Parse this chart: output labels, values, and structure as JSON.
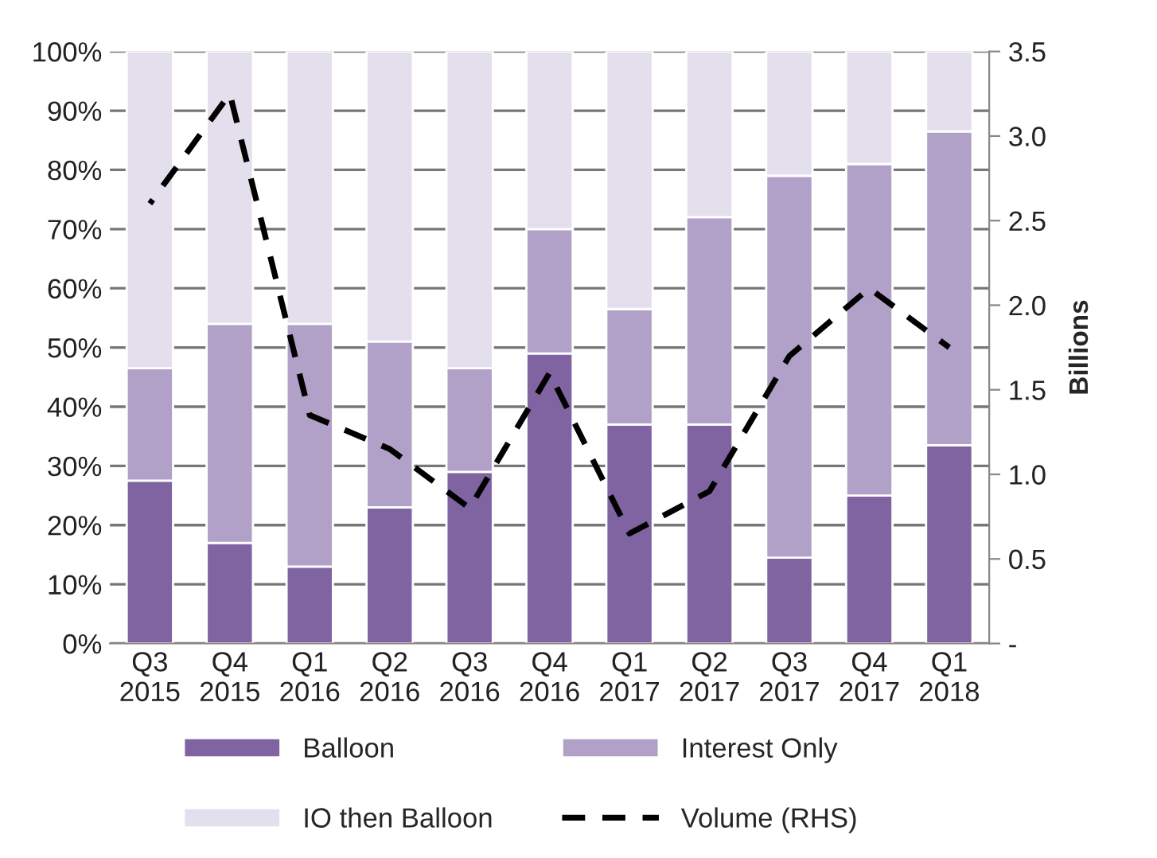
{
  "chart_data": {
    "type": "bar",
    "stacked": true,
    "y2label": "Billions",
    "categories": [
      "Q3\n2015",
      "Q4\n2015",
      "Q1\n2016",
      "Q2\n2016",
      "Q3\n2016",
      "Q4\n2016",
      "Q1\n2017",
      "Q2\n2017",
      "Q3\n2017",
      "Q4\n2017",
      "Q1\n2018"
    ],
    "series": [
      {
        "name": "Balloon",
        "color": "#8064a2",
        "values": [
          27.5,
          17,
          13,
          23,
          29,
          49,
          37,
          37,
          14.5,
          25,
          33.5
        ]
      },
      {
        "name": "Interest Only",
        "color": "#b1a0c7",
        "values": [
          19,
          37,
          41,
          28,
          17.5,
          21,
          19.5,
          35,
          64.5,
          56,
          53
        ]
      },
      {
        "name": "IO then Balloon",
        "color": "#e4dfec",
        "values": [
          53.5,
          46,
          46,
          49,
          53.5,
          30,
          43.5,
          28,
          21,
          19,
          13.5
        ]
      },
      {
        "name": "Volume (RHS)",
        "type": "line",
        "axis": "y2",
        "color": "#000000",
        "line_style": "dashed",
        "values": [
          2.6,
          3.25,
          1.35,
          1.15,
          0.8,
          1.6,
          0.65,
          0.9,
          1.7,
          2.1,
          1.75
        ]
      }
    ],
    "ylim": [
      0,
      100
    ],
    "yticks": [
      {
        "value": 0,
        "label": "0%"
      },
      {
        "value": 10,
        "label": "10%"
      },
      {
        "value": 20,
        "label": "20%"
      },
      {
        "value": 30,
        "label": "30%"
      },
      {
        "value": 40,
        "label": "40%"
      },
      {
        "value": 50,
        "label": "50%"
      },
      {
        "value": 60,
        "label": "60%"
      },
      {
        "value": 70,
        "label": "70%"
      },
      {
        "value": 80,
        "label": "80%"
      },
      {
        "value": 90,
        "label": "90%"
      },
      {
        "value": 100,
        "label": "100%"
      }
    ],
    "y2lim": [
      0,
      3.5
    ],
    "y2ticks": [
      {
        "value": 0,
        "label": "-"
      },
      {
        "value": 0.5,
        "label": "0.5"
      },
      {
        "value": 1,
        "label": "1.0"
      },
      {
        "value": 1.5,
        "label": "1.5"
      },
      {
        "value": 2,
        "label": "2.0"
      },
      {
        "value": 2.5,
        "label": "2.5"
      },
      {
        "value": 3,
        "label": "3.0"
      },
      {
        "value": 3.5,
        "label": "3.5"
      }
    ],
    "grid": "y",
    "legend": "bottom"
  }
}
